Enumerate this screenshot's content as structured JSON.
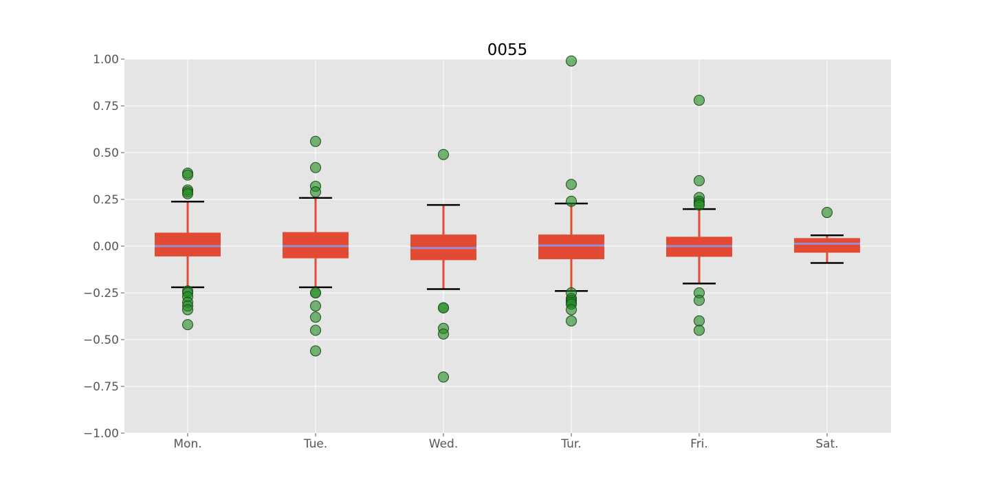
{
  "chart_data": {
    "type": "box",
    "title": "0055",
    "xlabel": "",
    "ylabel": "",
    "categories": [
      "Mon.",
      "Tue.",
      "Wed.",
      "Tur.",
      "Fri.",
      "Sat."
    ],
    "ylim": [
      -1.0,
      1.0
    ],
    "yticks": [
      -1.0,
      -0.75,
      -0.5,
      -0.25,
      0.0,
      0.25,
      0.5,
      0.75,
      1.0
    ],
    "ytick_labels": [
      "−1.00",
      "−0.75",
      "−0.50",
      "−0.25",
      "0.00",
      "0.25",
      "0.50",
      "0.75",
      "1.00"
    ],
    "grid": true,
    "boxes": [
      {
        "category": "Mon.",
        "whisker_low": -0.22,
        "q1": -0.055,
        "median": 0.0,
        "q3": 0.072,
        "whisker_high": 0.238,
        "outliers": [
          0.39,
          0.38,
          0.3,
          0.29,
          0.28,
          -0.24,
          -0.25,
          -0.27,
          -0.3,
          -0.32,
          -0.34,
          -0.42
        ]
      },
      {
        "category": "Tue.",
        "whisker_low": -0.22,
        "q1": -0.065,
        "median": 0.0,
        "q3": 0.075,
        "whisker_high": 0.258,
        "outliers": [
          0.56,
          0.42,
          0.32,
          0.29,
          -0.25,
          -0.25,
          -0.32,
          -0.38,
          -0.45,
          -0.56
        ]
      },
      {
        "category": "Wed.",
        "whisker_low": -0.23,
        "q1": -0.075,
        "median": -0.01,
        "q3": 0.062,
        "whisker_high": 0.22,
        "outliers": [
          0.49,
          -0.33,
          -0.33,
          -0.44,
          -0.47,
          -0.7
        ]
      },
      {
        "category": "Tur.",
        "whisker_low": -0.24,
        "q1": -0.07,
        "median": 0.003,
        "q3": 0.062,
        "whisker_high": 0.228,
        "outliers": [
          0.99,
          0.33,
          0.24,
          -0.25,
          -0.28,
          -0.29,
          -0.3,
          -0.31,
          -0.34,
          -0.4
        ]
      },
      {
        "category": "Fri.",
        "whisker_low": -0.2,
        "q1": -0.057,
        "median": 0.0,
        "q3": 0.05,
        "whisker_high": 0.198,
        "outliers": [
          0.78,
          0.35,
          0.26,
          0.24,
          0.23,
          0.22,
          -0.25,
          -0.29,
          -0.4,
          -0.45
        ]
      },
      {
        "category": "Sat.",
        "whisker_low": -0.09,
        "q1": -0.035,
        "median": 0.013,
        "q3": 0.043,
        "whisker_high": 0.058,
        "outliers": [
          0.18
        ]
      }
    ],
    "colors": {
      "background": "#e5e5e5",
      "grid": "#ffffff",
      "box": "#e24a33",
      "whisker": "#e24a33",
      "cap": "#000000",
      "median": "#988ed5",
      "outlier_fill": "#228b22",
      "outlier_edge": "#1a4a1a"
    }
  }
}
